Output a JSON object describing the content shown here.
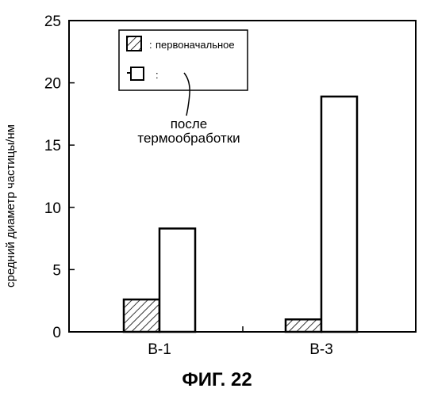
{
  "chart_data": {
    "type": "bar",
    "categories": [
      "B-1",
      "B-3"
    ],
    "series": [
      {
        "name": "первоначальное",
        "values": [
          2.6,
          1.0
        ],
        "pattern": "hatched"
      },
      {
        "name": "",
        "values": [
          8.3,
          18.9
        ],
        "pattern": "open"
      }
    ],
    "ylabel": "средний диаметр частицы/нм",
    "ylim": [
      0,
      25
    ],
    "yticks": [
      0,
      5,
      10,
      15,
      20,
      25
    ],
    "legend": {
      "placement": "top-left",
      "colon": ":",
      "entries": [
        "первоначальное",
        ""
      ]
    },
    "annotation": {
      "lines": [
        "после",
        "термообработки"
      ],
      "refers_to": "open"
    },
    "grid": false
  },
  "caption": "ФИГ. 22"
}
